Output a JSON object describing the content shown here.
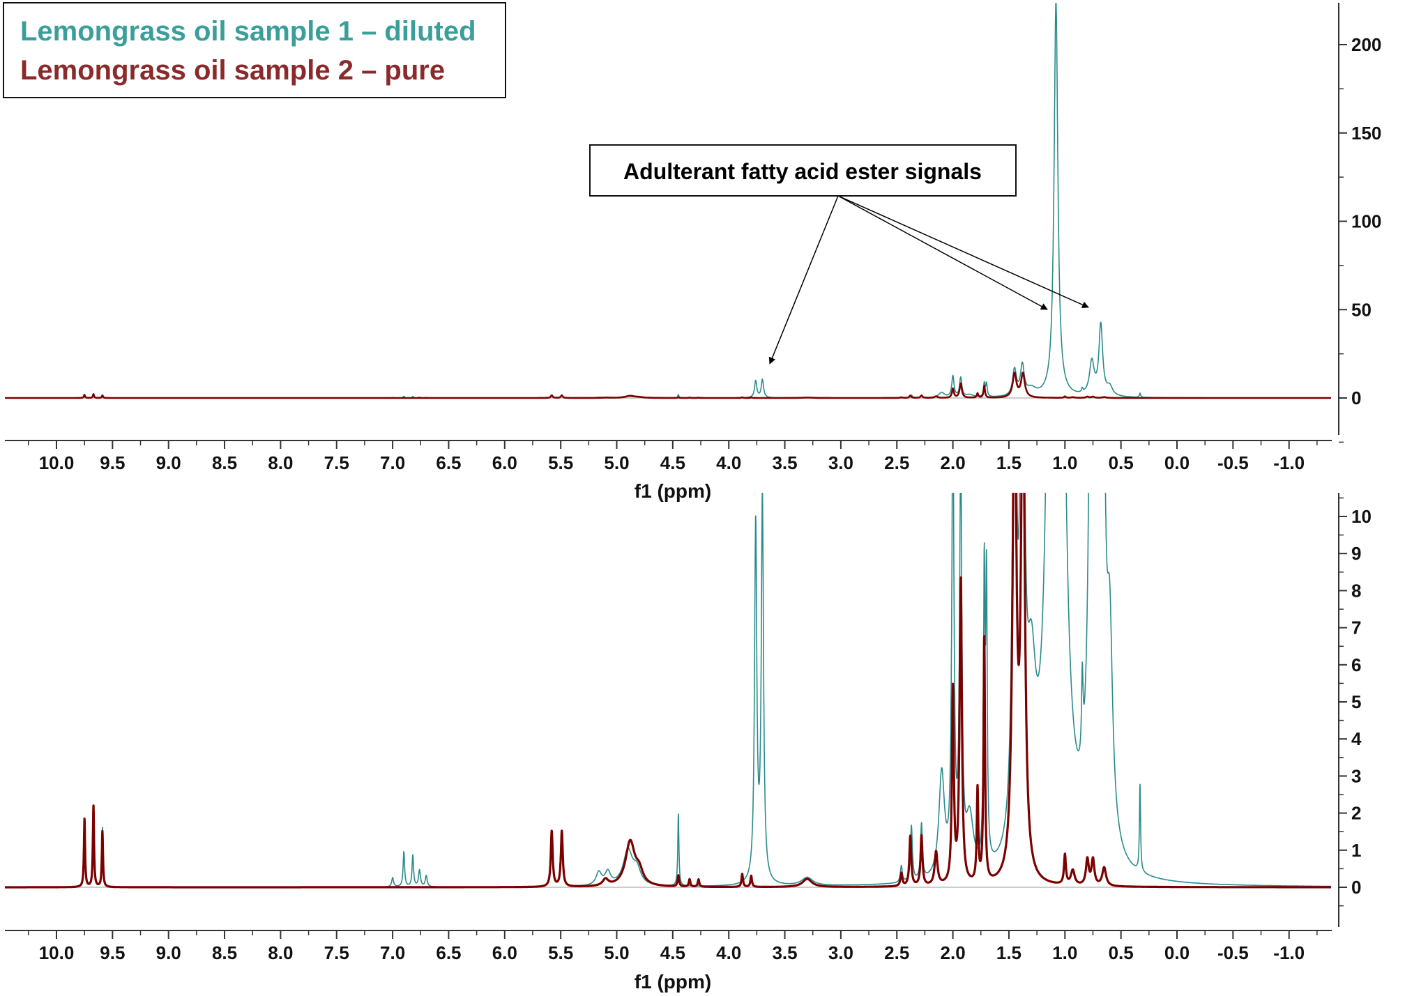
{
  "chart_data": {
    "type": "line",
    "subtype": "NMR spectrum overlay (two stacked panels, same data, different vertical zoom)",
    "legend": {
      "placement": "top-left",
      "entries": [
        {
          "label": "Lemongrass oil sample 1 – diluted",
          "color": "#3a9e9a"
        },
        {
          "label": "Lemongrass oil sample 2 – pure",
          "color": "#8b2a2a"
        }
      ]
    },
    "annotation": {
      "text": "Adulterant fatty acid ester signals",
      "points_to_ppm": [
        3.65,
        1.1,
        0.75
      ]
    },
    "xlabel": "f1 (ppm)",
    "x_reversed": true,
    "xlim": [
      10.46,
      -1.38
    ],
    "xticks": [
      "10.0",
      "9.5",
      "9.0",
      "8.5",
      "8.0",
      "7.5",
      "7.0",
      "6.5",
      "6.0",
      "5.5",
      "5.0",
      "4.5",
      "4.0",
      "3.5",
      "3.0",
      "2.5",
      "2.0",
      "1.5",
      "1.0",
      "0.5",
      "0.0",
      "-0.5",
      "-1.0"
    ],
    "grid": false,
    "panels": [
      {
        "name": "top",
        "ylim": [
          -21,
          224
        ],
        "yticks": [
          "0",
          "50",
          "100",
          "150",
          "200"
        ]
      },
      {
        "name": "bottom",
        "ylim": [
          -1.05,
          10.6
        ],
        "yticks": [
          "0",
          "1",
          "2",
          "3",
          "4",
          "5",
          "6",
          "7",
          "8",
          "9",
          "10"
        ]
      }
    ],
    "series": [
      {
        "name": "Lemongrass oil sample 1 – diluted",
        "color": "#2b8b8b",
        "peaks_ppm_height_hwhm": [
          [
            9.75,
            1.85,
            0.006
          ],
          [
            9.67,
            2.15,
            0.006
          ],
          [
            9.59,
            1.6,
            0.006
          ],
          [
            7.0,
            0.25,
            0.01
          ],
          [
            6.9,
            0.95,
            0.008
          ],
          [
            6.82,
            0.85,
            0.008
          ],
          [
            6.76,
            0.45,
            0.01
          ],
          [
            6.7,
            0.3,
            0.01
          ],
          [
            5.58,
            1.5,
            0.01
          ],
          [
            5.49,
            1.5,
            0.01
          ],
          [
            5.16,
            0.35,
            0.03
          ],
          [
            5.08,
            0.35,
            0.03
          ],
          [
            4.9,
            0.95,
            0.05
          ],
          [
            4.82,
            0.4,
            0.04
          ],
          [
            4.45,
            1.95,
            0.006
          ],
          [
            3.76,
            9.6,
            0.012
          ],
          [
            3.7,
            10.3,
            0.012
          ],
          [
            3.3,
            0.22,
            0.06
          ],
          [
            2.46,
            0.45,
            0.01
          ],
          [
            2.37,
            1.5,
            0.01
          ],
          [
            2.28,
            1.5,
            0.01
          ],
          [
            2.1,
            2.8,
            0.03
          ],
          [
            2.0,
            12.0,
            0.012
          ],
          [
            1.93,
            11.0,
            0.012
          ],
          [
            1.85,
            1.5,
            0.04
          ],
          [
            1.72,
            7.6,
            0.008
          ],
          [
            1.7,
            7.4,
            0.008
          ],
          [
            1.45,
            15.0,
            0.02
          ],
          [
            1.38,
            17.0,
            0.02
          ],
          [
            1.3,
            4.0,
            0.05
          ],
          [
            1.08,
            224.0,
            0.02
          ],
          [
            0.845,
            2.2,
            0.008
          ],
          [
            0.76,
            19.0,
            0.025
          ],
          [
            0.68,
            40.0,
            0.02
          ],
          [
            0.6,
            5.0,
            0.03
          ],
          [
            0.33,
            2.35,
            0.006
          ]
        ]
      },
      {
        "name": "Lemongrass oil sample 2 – pure",
        "color": "#7b0000",
        "peaks_ppm_height_hwhm": [
          [
            9.75,
            1.85,
            0.006
          ],
          [
            9.67,
            2.2,
            0.006
          ],
          [
            9.59,
            1.5,
            0.006
          ],
          [
            5.58,
            1.5,
            0.01
          ],
          [
            5.49,
            1.5,
            0.01
          ],
          [
            5.1,
            0.18,
            0.03
          ],
          [
            4.88,
            1.2,
            0.05
          ],
          [
            4.8,
            0.35,
            0.04
          ],
          [
            4.45,
            0.3,
            0.008
          ],
          [
            4.35,
            0.2,
            0.008
          ],
          [
            4.27,
            0.2,
            0.008
          ],
          [
            3.88,
            0.35,
            0.008
          ],
          [
            3.8,
            0.3,
            0.008
          ],
          [
            3.3,
            0.22,
            0.05
          ],
          [
            2.46,
            0.35,
            0.01
          ],
          [
            2.38,
            1.35,
            0.01
          ],
          [
            2.28,
            1.35,
            0.01
          ],
          [
            2.15,
            0.9,
            0.015
          ],
          [
            2.0,
            5.2,
            0.01
          ],
          [
            1.93,
            8.2,
            0.012
          ],
          [
            1.78,
            2.5,
            0.008
          ],
          [
            1.72,
            6.6,
            0.008
          ],
          [
            1.45,
            13.5,
            0.02
          ],
          [
            1.375,
            13.5,
            0.02
          ],
          [
            1.0,
            0.8,
            0.01
          ],
          [
            0.93,
            0.4,
            0.02
          ],
          [
            0.8,
            0.7,
            0.015
          ],
          [
            0.75,
            0.7,
            0.015
          ],
          [
            0.65,
            0.5,
            0.02
          ]
        ]
      }
    ]
  }
}
